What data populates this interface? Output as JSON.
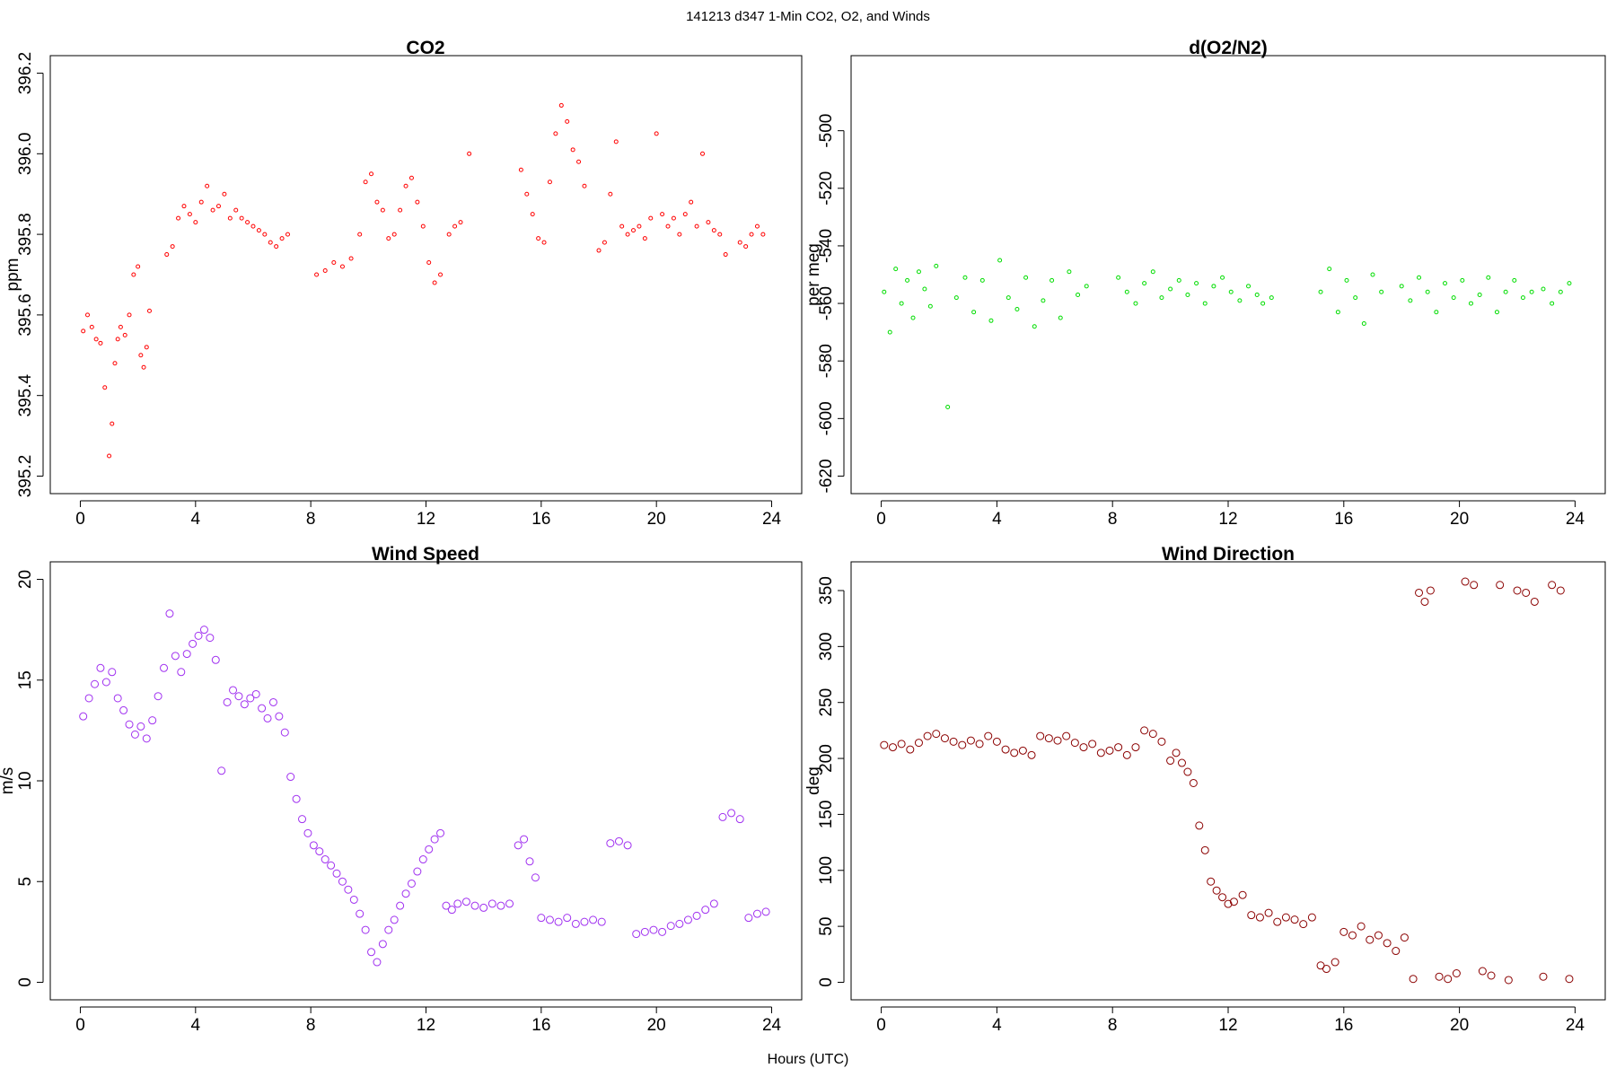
{
  "figure": {
    "title": "141213   d347   1-Min CO2, O2, and Winds",
    "xlabel": "Hours (UTC)"
  },
  "chart_data": [
    {
      "id": "co2",
      "type": "scatter",
      "title": "CO2",
      "xlabel": "",
      "ylabel": "ppm",
      "xlim": [
        0,
        24
      ],
      "ylim": [
        395.2,
        396.2
      ],
      "xticks": [
        "0",
        "4",
        "8",
        "12",
        "16",
        "20",
        "24"
      ],
      "yticks": [
        "395.2",
        "395.4",
        "395.6",
        "395.8",
        "396.0",
        "396.2"
      ],
      "color": "#ff0000",
      "marker_radius": 2,
      "series": [
        {
          "name": "CO2",
          "x": [
            0.1,
            0.25,
            0.4,
            0.55,
            0.7,
            0.85,
            1.0,
            1.1,
            1.2,
            1.3,
            1.4,
            1.55,
            1.7,
            1.85,
            2.0,
            2.1,
            2.2,
            2.3,
            2.4,
            3.0,
            3.2,
            3.4,
            3.6,
            3.8,
            4.0,
            4.2,
            4.4,
            4.6,
            4.8,
            5.0,
            5.2,
            5.4,
            5.6,
            5.8,
            6.0,
            6.2,
            6.4,
            6.6,
            6.8,
            7.0,
            7.2,
            8.2,
            8.5,
            8.8,
            9.1,
            9.4,
            9.7,
            9.9,
            10.1,
            10.3,
            10.5,
            10.7,
            10.9,
            11.1,
            11.3,
            11.5,
            11.7,
            11.9,
            12.1,
            12.3,
            12.5,
            12.8,
            13.0,
            13.2,
            13.5,
            15.3,
            15.5,
            15.7,
            15.9,
            16.1,
            16.3,
            16.5,
            16.7,
            16.9,
            17.1,
            17.3,
            17.5,
            18.0,
            18.2,
            18.4,
            18.6,
            18.8,
            19.0,
            19.2,
            19.4,
            19.6,
            19.8,
            20.0,
            20.2,
            20.4,
            20.6,
            20.8,
            21.0,
            21.2,
            21.4,
            21.6,
            21.8,
            22.0,
            22.2,
            22.4,
            22.9,
            23.1,
            23.3,
            23.5,
            23.7
          ],
          "y": [
            395.56,
            395.6,
            395.57,
            395.54,
            395.53,
            395.42,
            395.25,
            395.33,
            395.48,
            395.54,
            395.57,
            395.55,
            395.6,
            395.7,
            395.72,
            395.5,
            395.47,
            395.52,
            395.61,
            395.75,
            395.77,
            395.84,
            395.87,
            395.85,
            395.83,
            395.88,
            395.92,
            395.86,
            395.87,
            395.9,
            395.84,
            395.86,
            395.84,
            395.83,
            395.82,
            395.81,
            395.8,
            395.78,
            395.77,
            395.79,
            395.8,
            395.7,
            395.71,
            395.73,
            395.72,
            395.74,
            395.8,
            395.93,
            395.95,
            395.88,
            395.86,
            395.79,
            395.8,
            395.86,
            395.92,
            395.94,
            395.88,
            395.82,
            395.73,
            395.68,
            395.7,
            395.8,
            395.82,
            395.83,
            396.0,
            395.96,
            395.9,
            395.85,
            395.79,
            395.78,
            395.93,
            396.05,
            396.12,
            396.08,
            396.01,
            395.98,
            395.92,
            395.76,
            395.78,
            395.9,
            396.03,
            395.82,
            395.8,
            395.81,
            395.82,
            395.79,
            395.84,
            396.05,
            395.85,
            395.82,
            395.84,
            395.8,
            395.85,
            395.88,
            395.82,
            396.0,
            395.83,
            395.81,
            395.8,
            395.75,
            395.78,
            395.77,
            395.8,
            395.82,
            395.8
          ]
        }
      ]
    },
    {
      "id": "o2n2",
      "type": "scatter",
      "title": "d(O2/N2)",
      "xlabel": "",
      "ylabel": "per meg",
      "xlim": [
        0,
        24
      ],
      "ylim": [
        -620,
        -480
      ],
      "xticks": [
        "0",
        "4",
        "8",
        "12",
        "16",
        "20",
        "24"
      ],
      "yticks": [
        "-620",
        "-600",
        "-580",
        "-560",
        "-540",
        "-520",
        "-500"
      ],
      "color": "#00dd00",
      "marker_radius": 2,
      "series": [
        {
          "name": "d(O2/N2)",
          "x": [
            0.1,
            0.3,
            0.5,
            0.7,
            0.9,
            1.1,
            1.3,
            1.5,
            1.7,
            1.9,
            2.3,
            2.6,
            2.9,
            3.2,
            3.5,
            3.8,
            4.1,
            4.4,
            4.7,
            5.0,
            5.3,
            5.6,
            5.9,
            6.2,
            6.5,
            6.8,
            7.1,
            8.2,
            8.5,
            8.8,
            9.1,
            9.4,
            9.7,
            10.0,
            10.3,
            10.6,
            10.9,
            11.2,
            11.5,
            11.8,
            12.1,
            12.4,
            12.7,
            13.0,
            13.2,
            13.5,
            15.2,
            15.5,
            15.8,
            16.1,
            16.4,
            16.7,
            17.0,
            17.3,
            18.0,
            18.3,
            18.6,
            18.9,
            19.2,
            19.5,
            19.8,
            20.1,
            20.4,
            20.7,
            21.0,
            21.3,
            21.6,
            21.9,
            22.2,
            22.5,
            22.9,
            23.2,
            23.5,
            23.8
          ],
          "y": [
            -556,
            -570,
            -548,
            -560,
            -552,
            -565,
            -549,
            -555,
            -561,
            -547,
            -596,
            -558,
            -551,
            -563,
            -552,
            -566,
            -545,
            -558,
            -562,
            -551,
            -568,
            -559,
            -552,
            -565,
            -549,
            -557,
            -554,
            -551,
            -556,
            -560,
            -553,
            -549,
            -558,
            -555,
            -552,
            -557,
            -553,
            -560,
            -554,
            -551,
            -556,
            -559,
            -554,
            -557,
            -560,
            -558,
            -556,
            -548,
            -563,
            -552,
            -558,
            -567,
            -550,
            -556,
            -554,
            -559,
            -551,
            -556,
            -563,
            -553,
            -558,
            -552,
            -560,
            -557,
            -551,
            -563,
            -556,
            -552,
            -558,
            -556,
            -555,
            -560,
            -556,
            -553
          ]
        }
      ]
    },
    {
      "id": "wspd",
      "type": "scatter",
      "title": "Wind Speed",
      "xlabel": "",
      "ylabel": "m/s",
      "xlim": [
        0,
        24
      ],
      "ylim": [
        0,
        20
      ],
      "xticks": [
        "0",
        "4",
        "8",
        "12",
        "16",
        "20",
        "24"
      ],
      "yticks": [
        "0",
        "5",
        "10",
        "15",
        "20"
      ],
      "color": "#a030f0",
      "marker_radius": 4,
      "series": [
        {
          "name": "Wind Speed",
          "x": [
            0.1,
            0.3,
            0.5,
            0.7,
            0.9,
            1.1,
            1.3,
            1.5,
            1.7,
            1.9,
            2.1,
            2.3,
            2.5,
            2.7,
            2.9,
            3.1,
            3.3,
            3.5,
            3.7,
            3.9,
            4.1,
            4.3,
            4.5,
            4.7,
            4.9,
            5.1,
            5.3,
            5.5,
            5.7,
            5.9,
            6.1,
            6.3,
            6.5,
            6.7,
            6.9,
            7.1,
            7.3,
            7.5,
            7.7,
            7.9,
            8.1,
            8.3,
            8.5,
            8.7,
            8.9,
            9.1,
            9.3,
            9.5,
            9.7,
            9.9,
            10.1,
            10.3,
            10.5,
            10.7,
            10.9,
            11.1,
            11.3,
            11.5,
            11.7,
            11.9,
            12.1,
            12.3,
            12.5,
            12.7,
            12.9,
            13.1,
            13.4,
            13.7,
            14.0,
            14.3,
            14.6,
            14.9,
            15.2,
            15.4,
            15.6,
            15.8,
            16.0,
            16.3,
            16.6,
            16.9,
            17.2,
            17.5,
            17.8,
            18.1,
            18.4,
            18.7,
            19.0,
            19.3,
            19.6,
            19.9,
            20.2,
            20.5,
            20.8,
            21.1,
            21.4,
            21.7,
            22.0,
            22.3,
            22.6,
            22.9,
            23.2,
            23.5,
            23.8
          ],
          "y": [
            13.2,
            14.1,
            14.8,
            15.6,
            14.9,
            15.4,
            14.1,
            13.5,
            12.8,
            12.3,
            12.7,
            12.1,
            13.0,
            14.2,
            15.6,
            18.3,
            16.2,
            15.4,
            16.3,
            16.8,
            17.2,
            17.5,
            17.1,
            16.0,
            10.5,
            13.9,
            14.5,
            14.2,
            13.8,
            14.1,
            14.3,
            13.6,
            13.1,
            13.9,
            13.2,
            12.4,
            10.2,
            9.1,
            8.1,
            7.4,
            6.8,
            6.5,
            6.1,
            5.8,
            5.4,
            5.0,
            4.6,
            4.1,
            3.4,
            2.6,
            1.5,
            1.0,
            1.9,
            2.6,
            3.1,
            3.8,
            4.4,
            4.9,
            5.5,
            6.1,
            6.6,
            7.1,
            7.4,
            3.8,
            3.6,
            3.9,
            4.0,
            3.8,
            3.7,
            3.9,
            3.8,
            3.9,
            6.8,
            7.1,
            6.0,
            5.2,
            3.2,
            3.1,
            3.0,
            3.2,
            2.9,
            3.0,
            3.1,
            3.0,
            6.9,
            7.0,
            6.8,
            2.4,
            2.5,
            2.6,
            2.5,
            2.8,
            2.9,
            3.1,
            3.3,
            3.6,
            3.9,
            8.2,
            8.4,
            8.1,
            3.2,
            3.4,
            3.5
          ]
        }
      ]
    },
    {
      "id": "wdir",
      "type": "scatter",
      "title": "Wind Direction",
      "xlabel": "",
      "ylabel": "deg",
      "xlim": [
        0,
        24
      ],
      "ylim": [
        0,
        360
      ],
      "xticks": [
        "0",
        "4",
        "8",
        "12",
        "16",
        "20",
        "24"
      ],
      "yticks": [
        "0",
        "50",
        "100",
        "150",
        "200",
        "250",
        "300",
        "350"
      ],
      "color": "#8b0000",
      "marker_radius": 4,
      "series": [
        {
          "name": "Wind Direction",
          "x": [
            0.1,
            0.4,
            0.7,
            1.0,
            1.3,
            1.6,
            1.9,
            2.2,
            2.5,
            2.8,
            3.1,
            3.4,
            3.7,
            4.0,
            4.3,
            4.6,
            4.9,
            5.2,
            5.5,
            5.8,
            6.1,
            6.4,
            6.7,
            7.0,
            7.3,
            7.6,
            7.9,
            8.2,
            8.5,
            8.8,
            9.1,
            9.4,
            9.7,
            10.0,
            10.2,
            10.4,
            10.6,
            10.8,
            11.0,
            11.2,
            11.4,
            11.6,
            11.8,
            12.0,
            12.2,
            12.5,
            12.8,
            13.1,
            13.4,
            13.7,
            14.0,
            14.3,
            14.6,
            14.9,
            15.2,
            15.4,
            15.7,
            16.0,
            16.3,
            16.6,
            16.9,
            17.2,
            17.5,
            17.8,
            18.1,
            18.4,
            18.6,
            18.8,
            19.0,
            19.3,
            19.6,
            19.9,
            20.2,
            20.5,
            20.8,
            21.1,
            21.4,
            21.7,
            22.0,
            22.3,
            22.6,
            22.9,
            23.2,
            23.5,
            23.8
          ],
          "y": [
            212,
            210,
            213,
            208,
            214,
            220,
            222,
            218,
            215,
            212,
            216,
            213,
            220,
            215,
            208,
            205,
            207,
            203,
            220,
            218,
            216,
            220,
            214,
            210,
            213,
            205,
            207,
            210,
            203,
            210,
            225,
            222,
            215,
            198,
            205,
            196,
            188,
            178,
            140,
            118,
            90,
            82,
            76,
            70,
            72,
            78,
            60,
            58,
            62,
            54,
            58,
            56,
            52,
            58,
            15,
            12,
            18,
            45,
            42,
            50,
            38,
            42,
            35,
            28,
            40,
            3,
            348,
            340,
            350,
            5,
            3,
            8,
            358,
            355,
            10,
            6,
            355,
            2,
            350,
            348,
            340,
            5,
            355,
            350,
            3
          ]
        }
      ]
    }
  ]
}
